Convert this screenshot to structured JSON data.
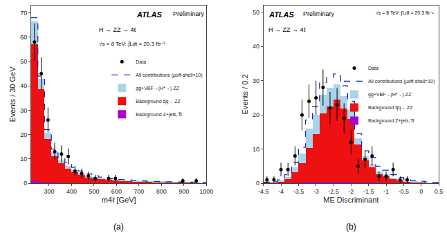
{
  "chart_data": [
    {
      "type": "bar",
      "stacked": true,
      "grid": false,
      "legend": "upper right",
      "xlabel": "m4ℓ [GeV]",
      "ylabel": "Events / 30 GeV",
      "xlim": [
        220,
        1000
      ],
      "ylim": [
        0,
        73
      ],
      "xticks": [
        300,
        400,
        500,
        600,
        700,
        800,
        900,
        1000
      ],
      "yticks": [
        0,
        10,
        20,
        30,
        40,
        50,
        60,
        70
      ],
      "bins": [
        220,
        250,
        280,
        310,
        340,
        370,
        400,
        430,
        460,
        490,
        520,
        550,
        580,
        610,
        640,
        670,
        700,
        730,
        760,
        790,
        820,
        850,
        880,
        910,
        940,
        970,
        1000
      ],
      "series": [
        {
          "name": "Background Z+jets, t̅t",
          "color": "#aa00cc",
          "values": [
            1.0,
            0.5,
            0.3,
            0.2,
            0.1,
            0.1,
            0.05,
            0.03,
            0.02,
            0.01,
            0.01,
            0.0,
            0.0,
            0.0,
            0.0,
            0.0,
            0.0,
            0.0,
            0.0,
            0.0,
            0.0,
            0.0,
            0.0,
            0.0,
            0.0,
            0.0
          ]
        },
        {
          "name": "Background q̅q→ ZZ",
          "color": "#ee1111",
          "values": [
            56.0,
            38.0,
            18.0,
            11.0,
            8.0,
            6.0,
            4.5,
            3.5,
            2.5,
            2.0,
            1.8,
            1.5,
            1.2,
            1.0,
            0.9,
            0.8,
            0.7,
            0.6,
            0.5,
            0.5,
            0.4,
            0.4,
            0.35,
            0.3,
            0.28,
            0.25
          ]
        },
        {
          "name": "gg+VBF→(H*→) ZZ",
          "color": "#aad4eb",
          "values": [
            9.5,
            4.5,
            2.5,
            1.5,
            1.2,
            1.0,
            0.8,
            0.6,
            0.5,
            0.4,
            0.3,
            0.3,
            0.2,
            0.2,
            0.15,
            0.1,
            0.1,
            0.1,
            0.08,
            0.07,
            0.06,
            0.05,
            0.05,
            0.04,
            0.04,
            0.03
          ]
        },
        {
          "name": "All contributions (μoff-shell=10)",
          "type": "line",
          "line_style": "dashed",
          "color": "#2222cc",
          "values": [
            68.0,
            44.0,
            22.0,
            14.0,
            10.5,
            8.5,
            6.5,
            5.0,
            3.8,
            3.0,
            2.5,
            2.1,
            1.8,
            1.5,
            1.3,
            1.1,
            0.95,
            0.85,
            0.75,
            0.65,
            0.6,
            0.55,
            0.5,
            0.45,
            0.42,
            0.38
          ]
        },
        {
          "name": "Data",
          "type": "scatter",
          "marker": "circle",
          "color": "#000000",
          "x": [
            235,
            265,
            295,
            325,
            355,
            385,
            415,
            445,
            475,
            505,
            565,
            595,
            895,
            955
          ],
          "values": [
            58,
            45,
            26,
            13,
            12,
            11,
            5,
            4,
            3,
            2,
            2,
            2,
            1,
            1
          ],
          "errors": [
            7.6,
            6.7,
            5.1,
            3.6,
            3.5,
            3.3,
            2.2,
            2.0,
            1.7,
            1.4,
            1.4,
            1.4,
            1.0,
            1.0
          ]
        }
      ],
      "annotations": [
        "ATLAS",
        "Preliminary",
        "H → ZZ → 4ℓ",
        "√s = 8 TeV: ∫Ldt = 20.3 fb⁻¹",
        "(a)"
      ]
    },
    {
      "type": "bar",
      "stacked": true,
      "grid": false,
      "legend": "right",
      "xlabel": "ME Discriminant",
      "ylabel": "Events / 0.2",
      "xlim": [
        -4.5,
        0.5
      ],
      "ylim": [
        0,
        52
      ],
      "xticks": [
        -4.5,
        -4,
        -3.5,
        -3,
        -2.5,
        -2,
        -1.5,
        -1,
        -0.5,
        0,
        0.5
      ],
      "yticks": [
        0,
        10,
        20,
        30,
        40,
        50
      ],
      "bins": [
        -4.5,
        -4.3,
        -4.1,
        -3.9,
        -3.7,
        -3.5,
        -3.3,
        -3.1,
        -2.9,
        -2.7,
        -2.5,
        -2.3,
        -2.1,
        -1.9,
        -1.7,
        -1.5,
        -1.3,
        -1.1,
        -0.9,
        -0.7,
        -0.5,
        -0.3,
        -0.1,
        0.1,
        0.3,
        0.5
      ],
      "series": [
        {
          "name": "Background Z+jets, t̅t",
          "color": "#aa00cc",
          "values": [
            0.0,
            0.0,
            0.05,
            0.1,
            0.2,
            0.3,
            0.4,
            0.45,
            0.45,
            0.45,
            0.45,
            0.4,
            0.35,
            0.3,
            0.25,
            0.2,
            0.15,
            0.1,
            0.08,
            0.05,
            0.03,
            0.02,
            0.01,
            0.0,
            0.0
          ]
        },
        {
          "name": "Background q̅q→ ZZ",
          "color": "#ee1111",
          "values": [
            0.1,
            0.2,
            0.5,
            1.2,
            3.0,
            5.5,
            10.0,
            14.0,
            20.0,
            22.0,
            24.0,
            21.5,
            18.5,
            11.0,
            6.5,
            4.5,
            2.5,
            2.0,
            1.2,
            0.8,
            0.5,
            0.3,
            0.2,
            0.1,
            0.05
          ]
        },
        {
          "name": "gg+VBF→(H*→) ZZ",
          "color": "#aad4eb",
          "values": [
            0.0,
            0.0,
            0.1,
            0.5,
            1.5,
            3.0,
            5.5,
            5.5,
            5.5,
            5.5,
            4.5,
            3.5,
            2.5,
            1.8,
            1.2,
            1.0,
            0.7,
            0.5,
            0.4,
            0.3,
            0.2,
            0.15,
            0.1,
            0.05,
            0.02
          ]
        },
        {
          "name": "All contributions (μoff-shell=10)",
          "type": "line",
          "line_style": "dashed",
          "color": "#2222cc",
          "values": [
            0.3,
            0.5,
            1.0,
            2.5,
            6.0,
            10.5,
            18.5,
            22.5,
            29.5,
            31.0,
            32.0,
            28.5,
            24.0,
            14.5,
            9.5,
            7.5,
            5.0,
            3.8,
            2.5,
            1.7,
            1.2,
            0.8,
            0.6,
            0.4,
            0.2
          ]
        },
        {
          "name": "Data",
          "type": "scatter",
          "marker": "circle",
          "color": "#000000",
          "x": [
            -4.4,
            -4.2,
            -4.0,
            -3.8,
            -3.6,
            -3.4,
            -3.2,
            -3.0,
            -2.8,
            -2.6,
            -2.4,
            -2.2,
            -2.0,
            -1.8,
            -1.6,
            -1.4,
            -1.2,
            -1.0,
            -0.8,
            -0.6,
            -0.4
          ],
          "values": [
            1,
            1,
            4,
            4,
            8,
            20,
            24,
            25,
            28,
            22,
            23,
            19,
            12,
            5,
            7,
            8,
            2,
            2,
            4,
            1,
            1
          ],
          "errors": [
            1.0,
            1.0,
            2.0,
            2.0,
            2.8,
            4.5,
            4.9,
            5.0,
            5.3,
            4.7,
            4.8,
            4.4,
            3.5,
            2.2,
            2.6,
            2.8,
            1.4,
            1.4,
            2.0,
            1.0,
            1.0
          ]
        }
      ],
      "annotations": [
        "ATLAS",
        "Preliminary",
        "√s = 8 TeV: ∫Ldt = 20.3 fb⁻¹",
        "H → ZZ → 4ℓ",
        "(b)"
      ]
    }
  ]
}
